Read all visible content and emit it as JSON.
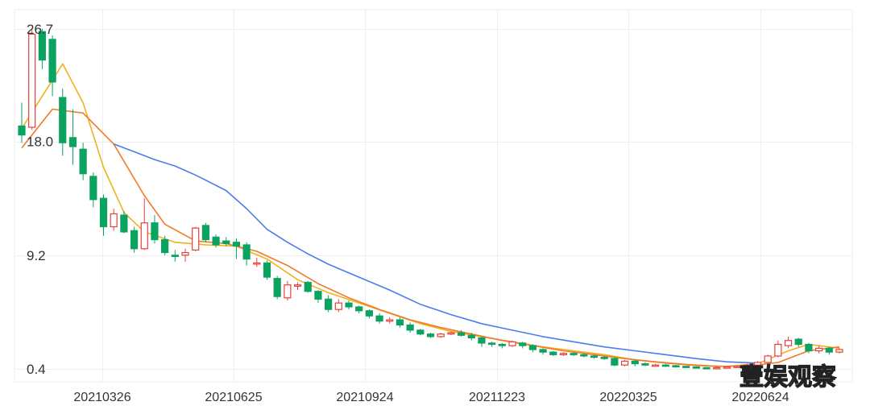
{
  "chart_data": {
    "type": "candlestick",
    "y_ticks": [
      "26.7",
      "18.0",
      "9.2",
      "0.4"
    ],
    "y_tick_values": [
      26.7,
      18.0,
      9.2,
      0.4
    ],
    "ylim": [
      0.4,
      26.7
    ],
    "x_ticks": [
      "20210326",
      "20210625",
      "20210924",
      "20211223",
      "20220325",
      "20220624"
    ],
    "grid": true,
    "up_color": "#e8403a",
    "down_color": "#0aa360",
    "ma_colors": [
      "#f2b01e",
      "#f07a2a",
      "#4b7bec"
    ],
    "candles": [
      [
        19.2,
        18.5,
        21.0,
        17.9
      ],
      [
        19.1,
        26.3,
        26.7,
        18.9
      ],
      [
        26.5,
        24.3,
        26.7,
        23.6
      ],
      [
        25.9,
        22.6,
        26.2,
        21.5
      ],
      [
        21.4,
        17.9,
        22.1,
        16.9
      ],
      [
        18.3,
        17.6,
        20.5,
        16.2
      ],
      [
        17.4,
        15.5,
        17.9,
        15.0
      ],
      [
        15.3,
        13.5,
        15.6,
        12.9
      ],
      [
        13.6,
        11.4,
        13.9,
        10.7
      ],
      [
        11.4,
        12.4,
        12.8,
        11.1
      ],
      [
        12.3,
        11.0,
        12.6,
        10.9
      ],
      [
        11.1,
        9.7,
        11.4,
        9.4
      ],
      [
        9.7,
        11.7,
        13.6,
        9.6
      ],
      [
        11.7,
        10.4,
        12.3,
        10.1
      ],
      [
        10.4,
        9.4,
        10.7,
        9.2
      ],
      [
        9.2,
        9.1,
        9.6,
        8.7
      ],
      [
        9.2,
        9.4,
        9.7,
        8.7
      ],
      [
        9.6,
        11.3,
        11.4,
        9.5
      ],
      [
        11.5,
        10.4,
        11.7,
        10.2
      ],
      [
        10.6,
        10.0,
        10.8,
        9.8
      ],
      [
        10.3,
        10.1,
        10.6,
        9.9
      ],
      [
        10.2,
        9.9,
        10.5,
        8.9
      ],
      [
        10.0,
        8.9,
        10.2,
        8.4
      ],
      [
        8.6,
        8.6,
        9.0,
        8.3
      ],
      [
        8.6,
        7.5,
        8.8,
        7.3
      ],
      [
        7.4,
        6.0,
        7.6,
        5.8
      ],
      [
        5.9,
        6.9,
        7.2,
        5.7
      ],
      [
        6.8,
        6.9,
        7.1,
        6.5
      ],
      [
        7.1,
        6.4,
        7.2,
        6.3
      ],
      [
        6.4,
        5.8,
        6.5,
        5.5
      ],
      [
        5.8,
        5.0,
        6.1,
        4.8
      ],
      [
        5.0,
        5.5,
        5.8,
        4.8
      ],
      [
        5.5,
        5.2,
        5.7,
        5.0
      ],
      [
        5.2,
        4.9,
        5.3,
        4.7
      ],
      [
        4.9,
        4.5,
        5.0,
        4.3
      ],
      [
        4.5,
        4.1,
        4.7,
        3.9
      ],
      [
        4.1,
        4.2,
        4.4,
        3.9
      ],
      [
        4.2,
        3.8,
        4.4,
        3.6
      ],
      [
        3.8,
        3.4,
        4.0,
        3.2
      ],
      [
        3.4,
        3.1,
        3.5,
        3.0
      ],
      [
        3.1,
        2.9,
        3.2,
        2.8
      ],
      [
        2.9,
        3.1,
        3.2,
        2.8
      ],
      [
        3.1,
        3.2,
        3.3,
        3.0
      ],
      [
        3.2,
        3.0,
        3.4,
        2.9
      ],
      [
        3.0,
        2.8,
        3.2,
        2.6
      ],
      [
        2.8,
        2.4,
        2.9,
        2.1
      ],
      [
        2.4,
        2.3,
        2.5,
        2.1
      ],
      [
        2.3,
        2.2,
        2.4,
        2.0
      ],
      [
        2.2,
        2.5,
        2.6,
        2.1
      ],
      [
        2.4,
        2.2,
        2.5,
        2.0
      ],
      [
        2.2,
        1.9,
        2.3,
        1.7
      ],
      [
        1.9,
        1.7,
        2.0,
        1.5
      ],
      [
        1.7,
        1.5,
        1.8,
        1.4
      ],
      [
        1.5,
        1.6,
        1.7,
        1.4
      ],
      [
        1.6,
        1.5,
        1.7,
        1.4
      ],
      [
        1.5,
        1.4,
        1.6,
        1.3
      ],
      [
        1.4,
        1.3,
        1.5,
        1.2
      ],
      [
        1.3,
        1.2,
        1.4,
        1.1
      ],
      [
        1.2,
        0.7,
        1.3,
        0.6
      ],
      [
        0.7,
        1.0,
        1.1,
        0.6
      ],
      [
        1.0,
        0.8,
        1.1,
        0.6
      ],
      [
        0.8,
        0.7,
        0.9,
        0.6
      ],
      [
        0.7,
        0.7,
        0.8,
        0.6
      ],
      [
        0.7,
        0.65,
        0.8,
        0.55
      ],
      [
        0.65,
        0.6,
        0.7,
        0.5
      ],
      [
        0.6,
        0.55,
        0.65,
        0.5
      ],
      [
        0.55,
        0.5,
        0.6,
        0.45
      ],
      [
        0.5,
        0.45,
        0.55,
        0.4
      ],
      [
        0.45,
        0.5,
        0.6,
        0.4
      ],
      [
        0.5,
        0.55,
        0.6,
        0.45
      ],
      [
        0.55,
        0.6,
        0.7,
        0.5
      ],
      [
        0.6,
        0.7,
        0.8,
        0.55
      ],
      [
        0.7,
        0.9,
        1.0,
        0.65
      ],
      [
        0.9,
        1.4,
        1.5,
        0.85
      ],
      [
        1.4,
        2.3,
        2.6,
        1.3
      ],
      [
        2.2,
        2.6,
        2.9,
        2.0
      ],
      [
        2.7,
        2.3,
        2.8,
        2.1
      ],
      [
        2.3,
        1.8,
        2.4,
        1.6
      ],
      [
        1.8,
        2.0,
        2.2,
        1.6
      ],
      [
        2.0,
        1.7,
        2.1,
        1.5
      ],
      [
        1.7,
        1.9,
        2.0,
        1.6
      ]
    ],
    "ma_short": [
      [
        0,
        19.0
      ],
      [
        4,
        24.0
      ],
      [
        6,
        21.0
      ],
      [
        8,
        16.0
      ],
      [
        10,
        12.5
      ],
      [
        12,
        11.0
      ],
      [
        15,
        10.2
      ],
      [
        18,
        10.0
      ],
      [
        21,
        9.9
      ],
      [
        24,
        8.9
      ],
      [
        27,
        7.3
      ],
      [
        30,
        6.3
      ],
      [
        33,
        5.5
      ],
      [
        36,
        4.7
      ],
      [
        39,
        3.9
      ],
      [
        42,
        3.3
      ],
      [
        45,
        2.9
      ],
      [
        48,
        2.5
      ],
      [
        51,
        2.1
      ],
      [
        54,
        1.8
      ],
      [
        57,
        1.5
      ],
      [
        60,
        1.1
      ],
      [
        63,
        0.85
      ],
      [
        66,
        0.65
      ],
      [
        69,
        0.6
      ],
      [
        72,
        0.8
      ],
      [
        75,
        1.8
      ],
      [
        77,
        2.3
      ],
      [
        80,
        2.0
      ]
    ],
    "ma_mid": [
      [
        0,
        17.5
      ],
      [
        3,
        20.5
      ],
      [
        6,
        20.2
      ],
      [
        9,
        17.8
      ],
      [
        12,
        13.8
      ],
      [
        14,
        11.6
      ],
      [
        17,
        10.3
      ],
      [
        20,
        10.1
      ],
      [
        23,
        9.5
      ],
      [
        26,
        8.4
      ],
      [
        29,
        7.0
      ],
      [
        32,
        5.9
      ],
      [
        35,
        5.0
      ],
      [
        38,
        4.2
      ],
      [
        41,
        3.6
      ],
      [
        44,
        3.1
      ],
      [
        47,
        2.6
      ],
      [
        50,
        2.2
      ],
      [
        53,
        1.8
      ],
      [
        56,
        1.5
      ],
      [
        59,
        1.2
      ],
      [
        62,
        0.95
      ],
      [
        65,
        0.75
      ],
      [
        68,
        0.6
      ],
      [
        71,
        0.62
      ],
      [
        74,
        0.9
      ],
      [
        77,
        1.8
      ],
      [
        80,
        2.1
      ]
    ],
    "ma_long": [
      [
        9,
        17.8
      ],
      [
        11,
        17.2
      ],
      [
        13,
        16.6
      ],
      [
        15,
        16.1
      ],
      [
        17,
        15.4
      ],
      [
        20,
        14.2
      ],
      [
        22,
        12.8
      ],
      [
        24,
        11.2
      ],
      [
        26,
        10.2
      ],
      [
        28,
        9.3
      ],
      [
        30,
        8.5
      ],
      [
        33,
        7.5
      ],
      [
        36,
        6.5
      ],
      [
        39,
        5.4
      ],
      [
        42,
        4.6
      ],
      [
        45,
        3.9
      ],
      [
        48,
        3.4
      ],
      [
        51,
        2.9
      ],
      [
        54,
        2.5
      ],
      [
        57,
        2.1
      ],
      [
        60,
        1.8
      ],
      [
        63,
        1.5
      ],
      [
        66,
        1.2
      ],
      [
        69,
        0.95
      ],
      [
        72,
        0.85
      ]
    ]
  },
  "watermark": "壹娱观察"
}
